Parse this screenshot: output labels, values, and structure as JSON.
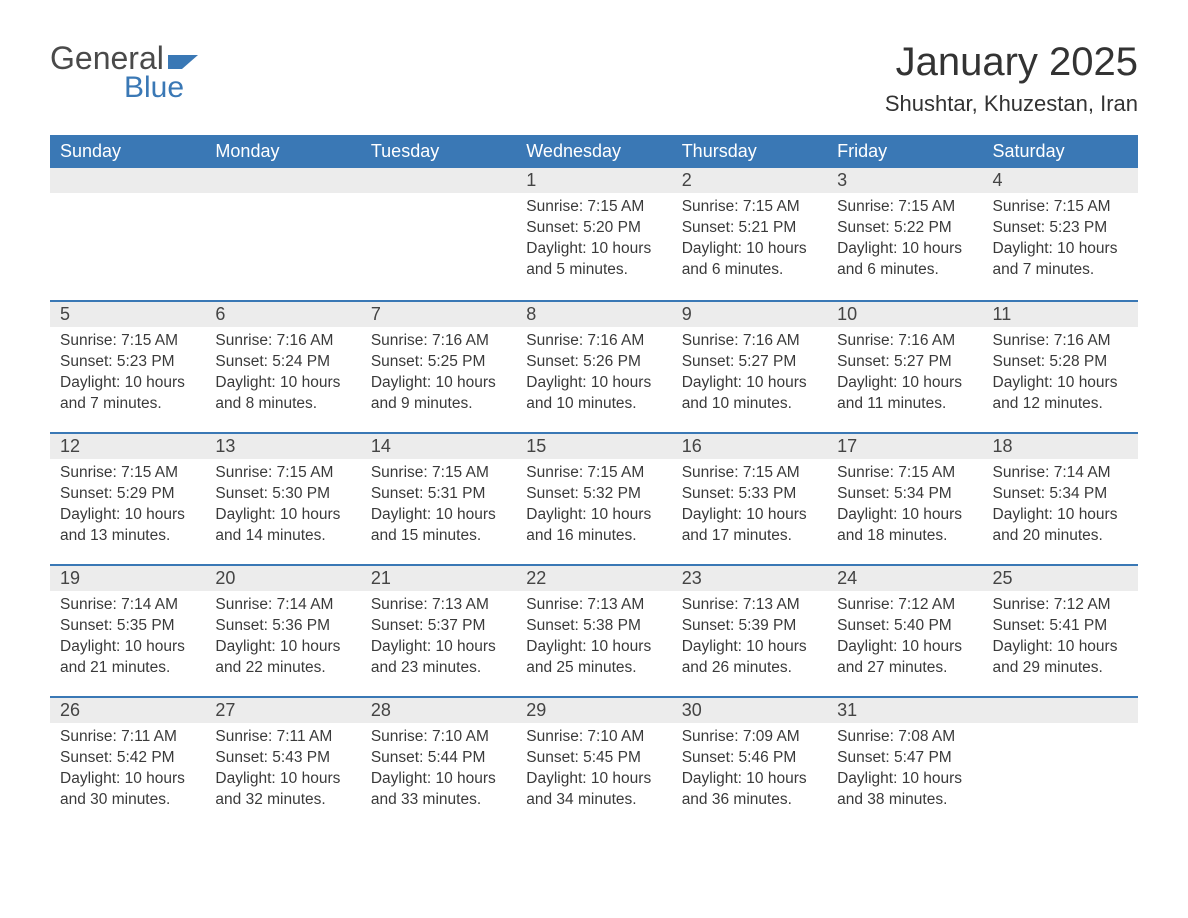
{
  "brand": {
    "general": "General",
    "blue": "Blue"
  },
  "title": "January 2025",
  "location": "Shushtar, Khuzestan, Iran",
  "colors": {
    "header_bg": "#3a78b5",
    "header_text": "#ffffff",
    "daynum_bg": "#ececec",
    "row_border": "#3a78b5",
    "body_text": "#3a3a3a",
    "page_bg": "#ffffff",
    "logo_general": "#4a4a4a",
    "logo_blue": "#3a78b5"
  },
  "typography": {
    "title_fontsize": 40,
    "location_fontsize": 22,
    "dayheader_fontsize": 18,
    "daynum_fontsize": 18,
    "body_fontsize": 15.5
  },
  "day_headers": [
    "Sunday",
    "Monday",
    "Tuesday",
    "Wednesday",
    "Thursday",
    "Friday",
    "Saturday"
  ],
  "weeks": [
    [
      null,
      null,
      null,
      {
        "n": "1",
        "sunrise": "7:15 AM",
        "sunset": "5:20 PM",
        "daylight": "10 hours and 5 minutes."
      },
      {
        "n": "2",
        "sunrise": "7:15 AM",
        "sunset": "5:21 PM",
        "daylight": "10 hours and 6 minutes."
      },
      {
        "n": "3",
        "sunrise": "7:15 AM",
        "sunset": "5:22 PM",
        "daylight": "10 hours and 6 minutes."
      },
      {
        "n": "4",
        "sunrise": "7:15 AM",
        "sunset": "5:23 PM",
        "daylight": "10 hours and 7 minutes."
      }
    ],
    [
      {
        "n": "5",
        "sunrise": "7:15 AM",
        "sunset": "5:23 PM",
        "daylight": "10 hours and 7 minutes."
      },
      {
        "n": "6",
        "sunrise": "7:16 AM",
        "sunset": "5:24 PM",
        "daylight": "10 hours and 8 minutes."
      },
      {
        "n": "7",
        "sunrise": "7:16 AM",
        "sunset": "5:25 PM",
        "daylight": "10 hours and 9 minutes."
      },
      {
        "n": "8",
        "sunrise": "7:16 AM",
        "sunset": "5:26 PM",
        "daylight": "10 hours and 10 minutes."
      },
      {
        "n": "9",
        "sunrise": "7:16 AM",
        "sunset": "5:27 PM",
        "daylight": "10 hours and 10 minutes."
      },
      {
        "n": "10",
        "sunrise": "7:16 AM",
        "sunset": "5:27 PM",
        "daylight": "10 hours and 11 minutes."
      },
      {
        "n": "11",
        "sunrise": "7:16 AM",
        "sunset": "5:28 PM",
        "daylight": "10 hours and 12 minutes."
      }
    ],
    [
      {
        "n": "12",
        "sunrise": "7:15 AM",
        "sunset": "5:29 PM",
        "daylight": "10 hours and 13 minutes."
      },
      {
        "n": "13",
        "sunrise": "7:15 AM",
        "sunset": "5:30 PM",
        "daylight": "10 hours and 14 minutes."
      },
      {
        "n": "14",
        "sunrise": "7:15 AM",
        "sunset": "5:31 PM",
        "daylight": "10 hours and 15 minutes."
      },
      {
        "n": "15",
        "sunrise": "7:15 AM",
        "sunset": "5:32 PM",
        "daylight": "10 hours and 16 minutes."
      },
      {
        "n": "16",
        "sunrise": "7:15 AM",
        "sunset": "5:33 PM",
        "daylight": "10 hours and 17 minutes."
      },
      {
        "n": "17",
        "sunrise": "7:15 AM",
        "sunset": "5:34 PM",
        "daylight": "10 hours and 18 minutes."
      },
      {
        "n": "18",
        "sunrise": "7:14 AM",
        "sunset": "5:34 PM",
        "daylight": "10 hours and 20 minutes."
      }
    ],
    [
      {
        "n": "19",
        "sunrise": "7:14 AM",
        "sunset": "5:35 PM",
        "daylight": "10 hours and 21 minutes."
      },
      {
        "n": "20",
        "sunrise": "7:14 AM",
        "sunset": "5:36 PM",
        "daylight": "10 hours and 22 minutes."
      },
      {
        "n": "21",
        "sunrise": "7:13 AM",
        "sunset": "5:37 PM",
        "daylight": "10 hours and 23 minutes."
      },
      {
        "n": "22",
        "sunrise": "7:13 AM",
        "sunset": "5:38 PM",
        "daylight": "10 hours and 25 minutes."
      },
      {
        "n": "23",
        "sunrise": "7:13 AM",
        "sunset": "5:39 PM",
        "daylight": "10 hours and 26 minutes."
      },
      {
        "n": "24",
        "sunrise": "7:12 AM",
        "sunset": "5:40 PM",
        "daylight": "10 hours and 27 minutes."
      },
      {
        "n": "25",
        "sunrise": "7:12 AM",
        "sunset": "5:41 PM",
        "daylight": "10 hours and 29 minutes."
      }
    ],
    [
      {
        "n": "26",
        "sunrise": "7:11 AM",
        "sunset": "5:42 PM",
        "daylight": "10 hours and 30 minutes."
      },
      {
        "n": "27",
        "sunrise": "7:11 AM",
        "sunset": "5:43 PM",
        "daylight": "10 hours and 32 minutes."
      },
      {
        "n": "28",
        "sunrise": "7:10 AM",
        "sunset": "5:44 PM",
        "daylight": "10 hours and 33 minutes."
      },
      {
        "n": "29",
        "sunrise": "7:10 AM",
        "sunset": "5:45 PM",
        "daylight": "10 hours and 34 minutes."
      },
      {
        "n": "30",
        "sunrise": "7:09 AM",
        "sunset": "5:46 PM",
        "daylight": "10 hours and 36 minutes."
      },
      {
        "n": "31",
        "sunrise": "7:08 AM",
        "sunset": "5:47 PM",
        "daylight": "10 hours and 38 minutes."
      },
      null
    ]
  ],
  "labels": {
    "sunrise": "Sunrise:",
    "sunset": "Sunset:",
    "daylight": "Daylight:"
  }
}
